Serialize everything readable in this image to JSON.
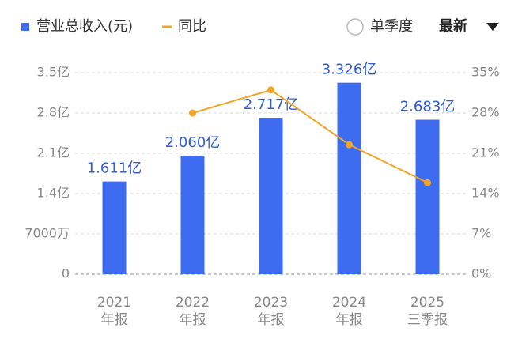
{
  "chart_data": {
    "type": "bar_line",
    "categories": [
      "2021",
      "2022",
      "2023",
      "2024",
      "2025"
    ],
    "category_sublabels": [
      "年报",
      "年报",
      "年报",
      "年报",
      "三季报"
    ],
    "series": [
      {
        "name": "营业总收入(元)",
        "color": "#3d6cf0",
        "type": "bar",
        "values": [
          1.611,
          2.06,
          2.717,
          3.326,
          2.683
        ],
        "value_labels": [
          "1.611亿",
          "2.060亿",
          "2.717亿",
          "3.326亿",
          "2.683亿"
        ]
      },
      {
        "name": "同比",
        "color": "#f0a526",
        "type": "line",
        "axis": "y2",
        "values": [
          null,
          28.0,
          32.0,
          22.5,
          15.9
        ]
      }
    ],
    "ylim": [
      0,
      3.5
    ],
    "yticks": [
      0,
      {
        "value": 0.7,
        "label": "7000万"
      },
      {
        "value": 1.4,
        "label": "1.4亿"
      },
      {
        "value": 2.1,
        "label": "2.1亿"
      },
      {
        "value": 2.8,
        "label": "2.8亿"
      },
      {
        "value": 3.5,
        "label": "3.5亿"
      }
    ],
    "y2lim": [
      0,
      35
    ],
    "y2ticks": [
      {
        "value": 0,
        "label": "0%"
      },
      {
        "value": 7,
        "label": "7%"
      },
      {
        "value": 14,
        "label": "14%"
      },
      {
        "value": 21,
        "label": "21%"
      },
      {
        "value": 28,
        "label": "28%"
      },
      {
        "value": 35,
        "label": "35%"
      }
    ],
    "grid": true
  },
  "controls": {
    "single_quarter": "单季度",
    "period": "最新"
  }
}
